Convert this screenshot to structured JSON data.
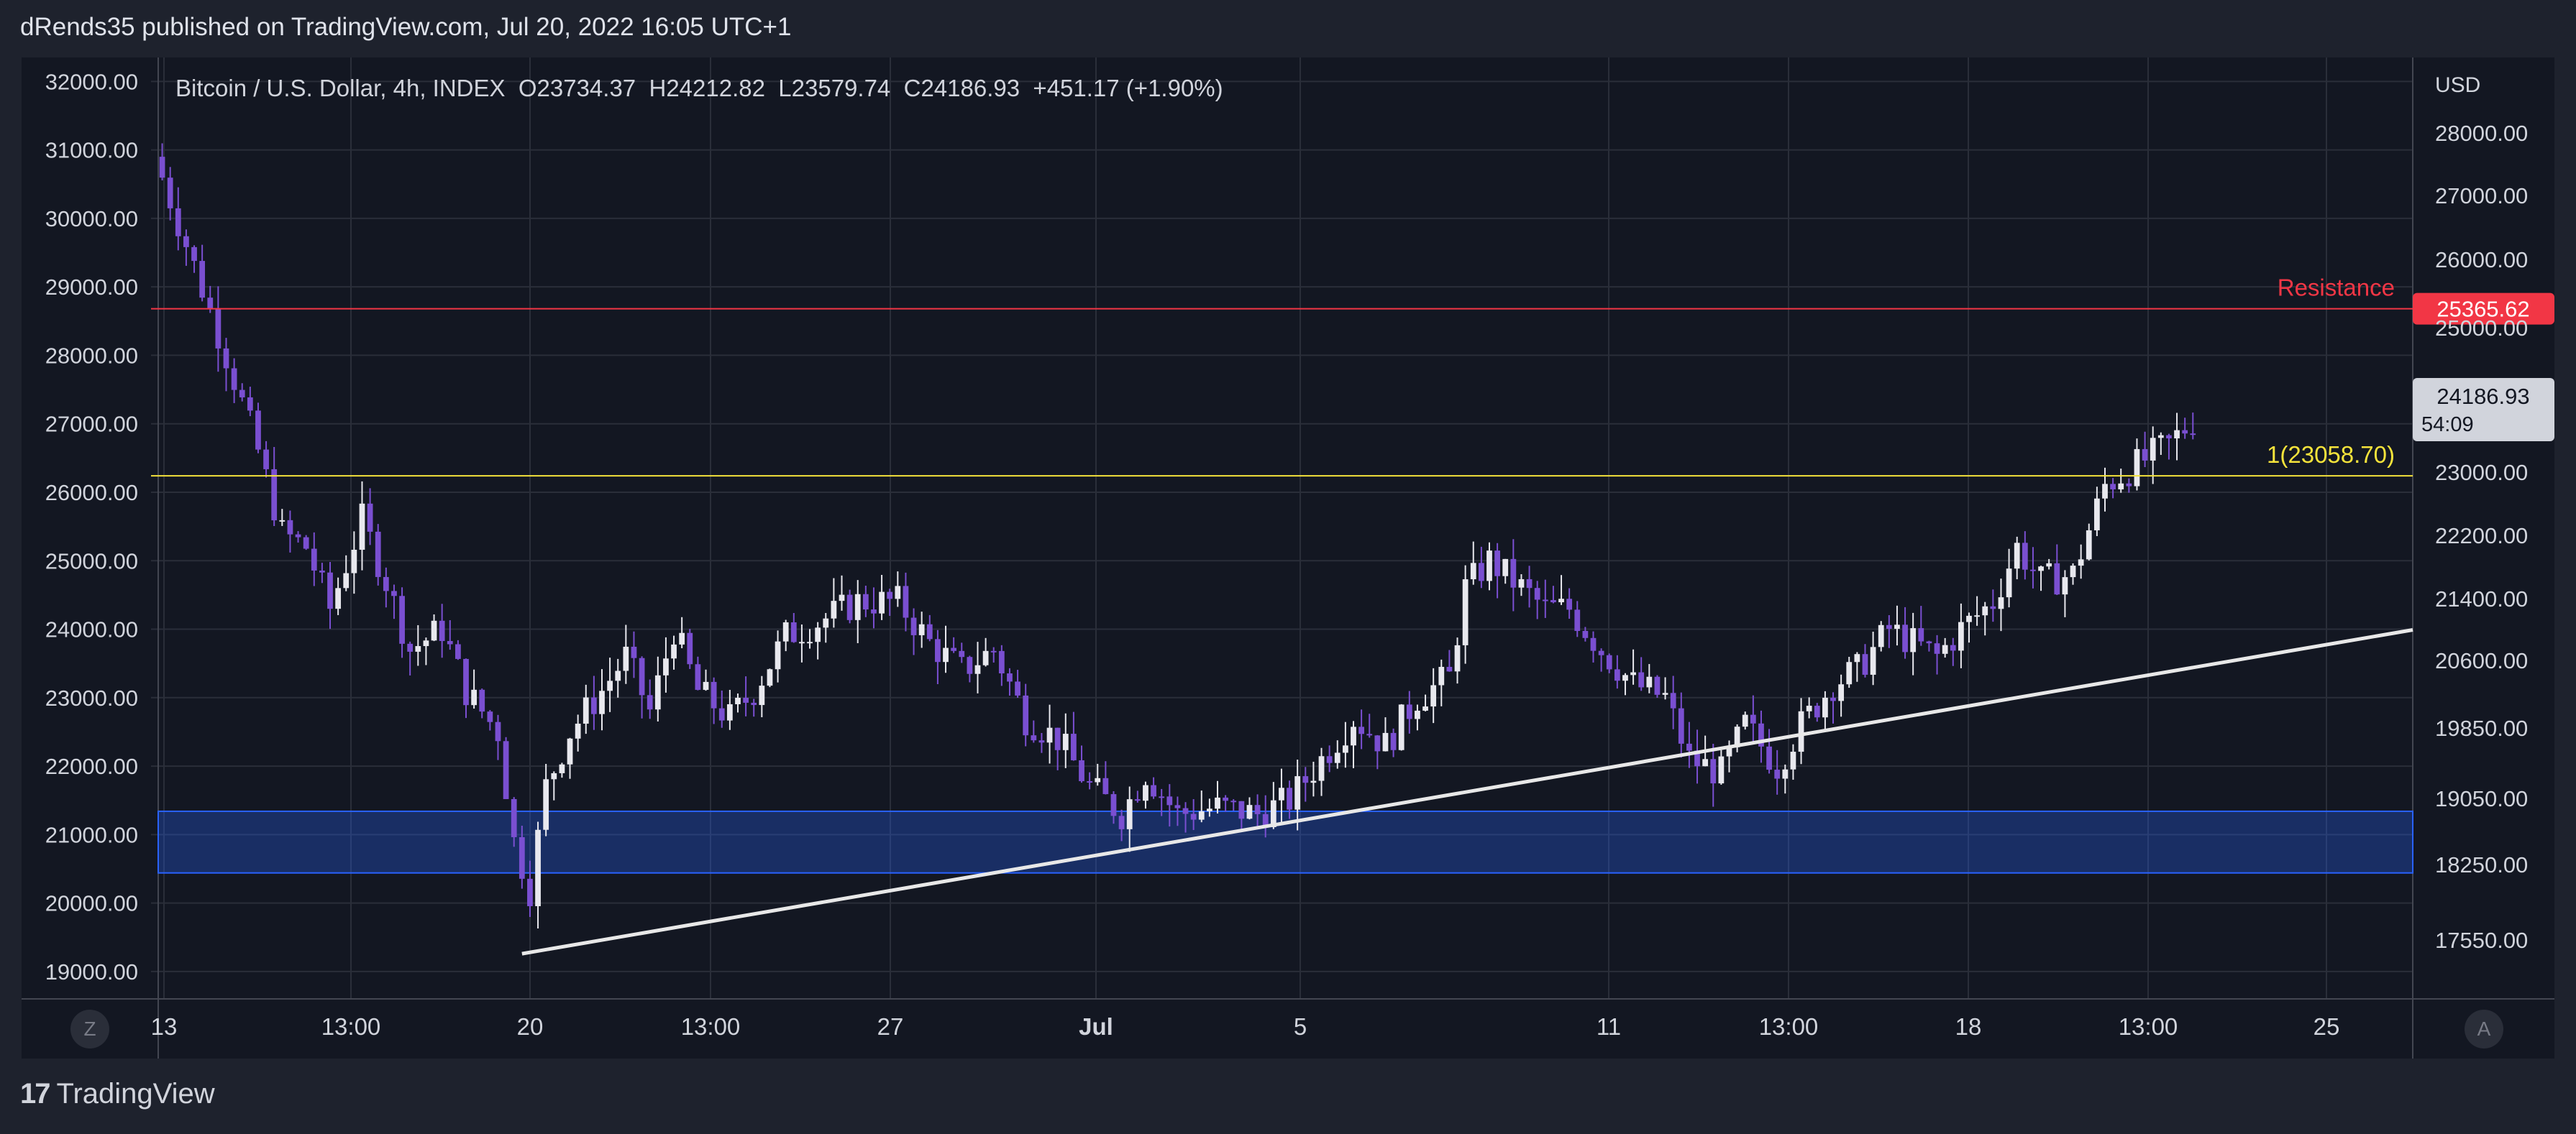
{
  "header": {
    "publisher_text": "dRends35 published on TradingView.com, Jul 20, 2022 16:05 UTC+1"
  },
  "footer": {
    "brand": "TradingView",
    "logo_glyph": "17"
  },
  "controls": {
    "z_label": "Z",
    "a_label": "A"
  },
  "chart_data": {
    "type": "candlestick",
    "title": "Bitcoin / U.S. Dollar, 4h, INDEX  O23734.37  H24212.82  L23579.74  C24186.93  +451.17 (+1.90%)",
    "ohlc_labels": [
      "O23734.37",
      "H24212.82",
      "L23579.74",
      "C24186.93",
      "+451.17 (+1.90%)"
    ],
    "currency": "USD",
    "left_axis": {
      "ticks": [
        "32000.00",
        "31000.00",
        "30000.00",
        "29000.00",
        "28000.00",
        "27000.00",
        "26000.00",
        "25000.00",
        "24000.00",
        "23000.00",
        "22000.00",
        "21000.00",
        "20000.00",
        "19000.00"
      ],
      "range": [
        18600,
        32350
      ]
    },
    "right_axis": {
      "ticks": [
        "28000.00",
        "27000.00",
        "26000.00",
        "25000.00",
        "23000.00",
        "22200.00",
        "21400.00",
        "20600.00",
        "19850.00",
        "19050.00",
        "18250.00",
        "17550.00"
      ]
    },
    "x_axis": {
      "ticks": [
        "13",
        "13:00",
        "20",
        "13:00",
        "27",
        "Jul",
        "5",
        "11",
        "13:00",
        "18",
        "13:00",
        "25"
      ],
      "bold_ticks": [
        "Jul"
      ]
    },
    "price_levels": [
      {
        "name": "Resistance",
        "label": "Resistance",
        "value": 28680,
        "color": "#f23645",
        "axis_label": "25365.62"
      },
      {
        "name": "fib-1",
        "label": "1(23058.70)",
        "value": 26240,
        "color": "#f5e33b"
      }
    ],
    "support_zone": {
      "from": 20440,
      "to": 21340,
      "color": "#2962ff"
    },
    "trendline": {
      "from_bar": 45,
      "from_value": 19260,
      "to_value": 23990,
      "color": "#e8e8e8"
    },
    "last_price": {
      "value": "24186.93",
      "countdown": "54:09"
    },
    "candles": {
      "bar_count": 282,
      "close_path": [
        [
          0,
          30600
        ],
        [
          4,
          29300
        ],
        [
          8,
          28000
        ],
        [
          12,
          26600
        ],
        [
          15,
          25400
        ],
        [
          18,
          25200
        ],
        [
          21,
          24300
        ],
        [
          25,
          25600
        ],
        [
          28,
          24700
        ],
        [
          31,
          23700
        ],
        [
          35,
          24000
        ],
        [
          38,
          23100
        ],
        [
          42,
          22500
        ],
        [
          44,
          20900
        ],
        [
          46,
          20200
        ],
        [
          48,
          21700
        ],
        [
          51,
          22500
        ],
        [
          55,
          23100
        ],
        [
          58,
          23600
        ],
        [
          61,
          22800
        ],
        [
          64,
          24000
        ],
        [
          67,
          23100
        ],
        [
          71,
          22700
        ],
        [
          74,
          23100
        ],
        [
          78,
          23900
        ],
        [
          82,
          24100
        ],
        [
          87,
          24400
        ],
        [
          92,
          24400
        ],
        [
          96,
          23800
        ],
        [
          100,
          23400
        ],
        [
          104,
          23700
        ],
        [
          108,
          22700
        ],
        [
          112,
          22400
        ],
        [
          116,
          21700
        ],
        [
          120,
          21300
        ],
        [
          123,
          21900
        ],
        [
          127,
          21300
        ],
        [
          132,
          21400
        ],
        [
          137,
          21300
        ],
        [
          141,
          21500
        ],
        [
          145,
          22100
        ],
        [
          149,
          22700
        ],
        [
          153,
          22300
        ],
        [
          157,
          23000
        ],
        [
          161,
          23300
        ],
        [
          163,
          24600
        ],
        [
          166,
          25000
        ],
        [
          169,
          24700
        ],
        [
          173,
          24300
        ],
        [
          176,
          24300
        ],
        [
          180,
          23700
        ],
        [
          184,
          23200
        ],
        [
          188,
          23000
        ],
        [
          191,
          22100
        ],
        [
          195,
          21900
        ],
        [
          198,
          22600
        ],
        [
          202,
          22000
        ],
        [
          205,
          22600
        ],
        [
          209,
          23200
        ],
        [
          212,
          23400
        ],
        [
          216,
          24000
        ],
        [
          219,
          23800
        ],
        [
          222,
          23600
        ],
        [
          225,
          24000
        ],
        [
          229,
          24400
        ],
        [
          232,
          25200
        ],
        [
          235,
          24700
        ],
        [
          239,
          24800
        ],
        [
          243,
          26100
        ],
        [
          247,
          26400
        ],
        [
          251,
          26700
        ],
        [
          254,
          27050
        ]
      ]
    }
  }
}
